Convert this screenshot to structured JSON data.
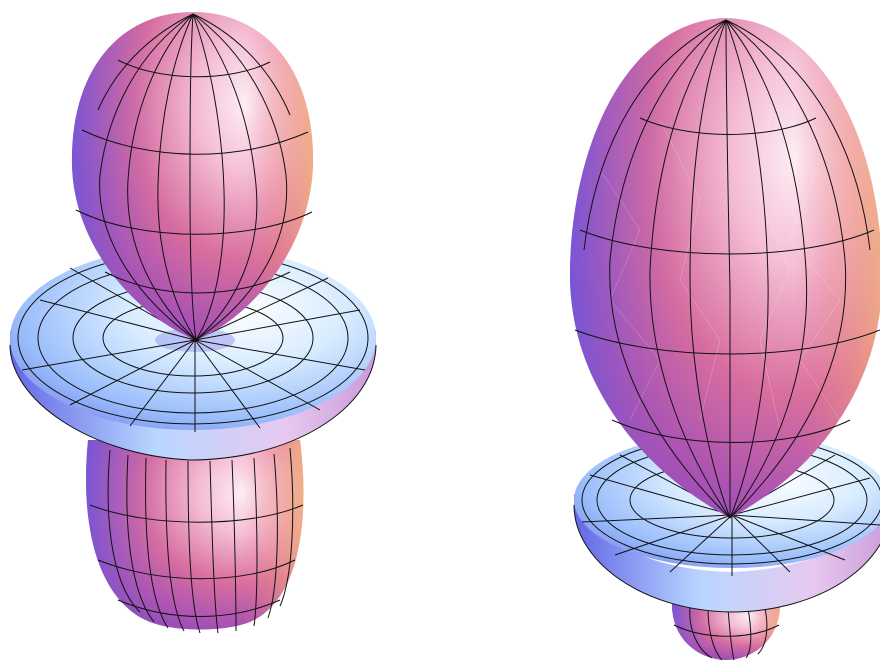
{
  "figure": {
    "panels": [
      {
        "id": "left",
        "shape": "two lobes with central torus"
      },
      {
        "id": "right",
        "shape": "large upper lobe with torus and small lower lobe"
      }
    ],
    "colors": {
      "lobe_light": "#f7d6e6",
      "lobe_mid": "#d56a9a",
      "lobe_dark": "#7a4fd0",
      "lobe_warm": "#f0a07a",
      "torus_light": "#eaf6ff",
      "torus_mid": "#9fc6ff",
      "torus_dark": "#6a6de8",
      "mesh": "#111111"
    }
  }
}
